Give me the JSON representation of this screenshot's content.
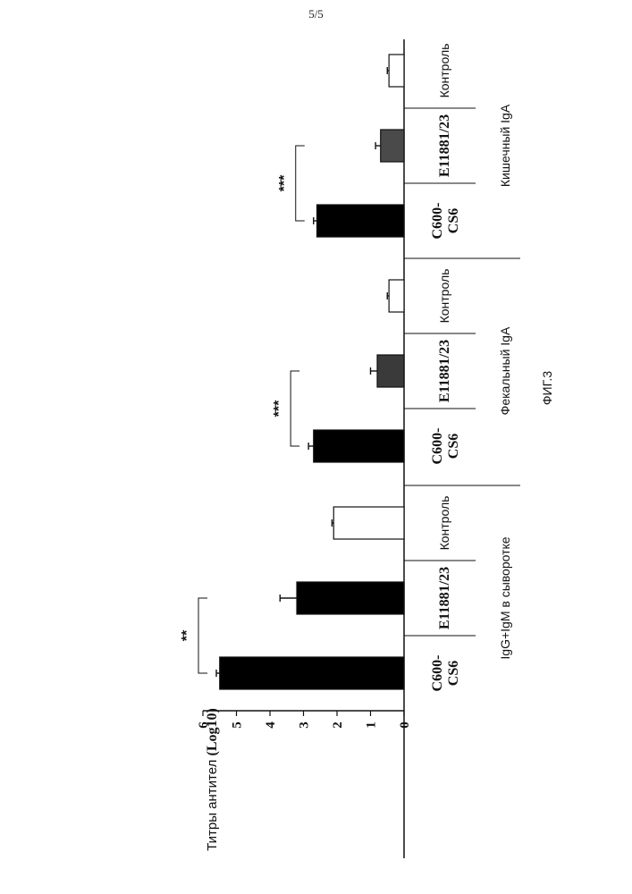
{
  "page_number": "5/5",
  "figure_label": "ФИГ.3",
  "chart_data": {
    "type": "bar",
    "ylabel": "Титры антител",
    "ylabel_unit": "(Log10)",
    "ylim": [
      0,
      6
    ],
    "yticks": [
      0,
      1,
      2,
      3,
      4,
      5,
      6
    ],
    "orientation": "rotated -90",
    "groups": [
      {
        "name": "IgG+IgM в сыворотке",
        "bars": [
          {
            "label": "C600-CS6",
            "label_lines": [
              "C600-",
              "CS6"
            ],
            "value": 5.5,
            "error": 0.1,
            "fill": "#000000"
          },
          {
            "label": "E11881/23",
            "label_lines": [
              "E11881/23"
            ],
            "value": 3.2,
            "error": 0.5,
            "fill": "#000000"
          },
          {
            "label": "Контроль",
            "label_lines": [
              "Контроль"
            ],
            "value": 2.1,
            "error": 0.05,
            "fill": "#ffffff"
          }
        ],
        "significance": {
          "label": "**",
          "from": 0,
          "to": 1
        }
      },
      {
        "name": "Фекальный IgA",
        "bars": [
          {
            "label": "C600-CS6",
            "label_lines": [
              "C600-",
              "CS6"
            ],
            "value": 2.7,
            "error": 0.15,
            "fill": "#000000"
          },
          {
            "label": "E11881/23",
            "label_lines": [
              "E11881/23"
            ],
            "value": 0.8,
            "error": 0.2,
            "fill": "#3a3a3a"
          },
          {
            "label": "Контроль",
            "label_lines": [
              "Контроль"
            ],
            "value": 0.45,
            "error": 0.05,
            "fill": "#ffffff"
          }
        ],
        "significance": {
          "label": "***",
          "from": 0,
          "to": 1
        }
      },
      {
        "name": "Кишечный IgA",
        "bars": [
          {
            "label": "C600-CS6",
            "label_lines": [
              "C600-",
              "CS6"
            ],
            "value": 2.6,
            "error": 0.1,
            "fill": "#000000"
          },
          {
            "label": "E11881/23",
            "label_lines": [
              "E11881/23"
            ],
            "value": 0.7,
            "error": 0.15,
            "fill": "#4a4a4a"
          },
          {
            "label": "Контроль",
            "label_lines": [
              "Контроль"
            ],
            "value": 0.45,
            "error": 0.05,
            "fill": "#ffffff"
          }
        ],
        "significance": {
          "label": "***",
          "from": 0,
          "to": 1
        }
      }
    ]
  }
}
